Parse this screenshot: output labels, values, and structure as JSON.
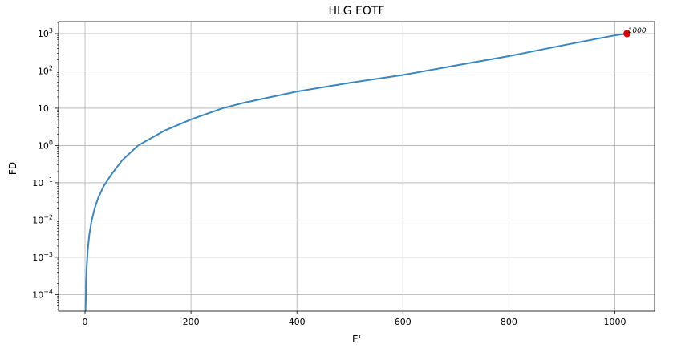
{
  "chart_data": {
    "type": "line",
    "title": "HLG EOTF",
    "xlabel": "E'",
    "ylabel": "FD",
    "xlim": [
      -50,
      1075
    ],
    "ylim": [
      3.6e-05,
      2100
    ],
    "yscale": "log",
    "grid": true,
    "xticks": [
      {
        "value": 0,
        "label": "0"
      },
      {
        "value": 200,
        "label": "200"
      },
      {
        "value": 400,
        "label": "400"
      },
      {
        "value": 600,
        "label": "600"
      },
      {
        "value": 800,
        "label": "800"
      },
      {
        "value": 1000,
        "label": "1000"
      }
    ],
    "yticks": [
      {
        "exp": -4,
        "base": "10",
        "sup": "−4"
      },
      {
        "exp": -3,
        "base": "10",
        "sup": "−3"
      },
      {
        "exp": -2,
        "base": "10",
        "sup": "−2"
      },
      {
        "exp": -1,
        "base": "10",
        "sup": "−1"
      },
      {
        "exp": 0,
        "base": "10",
        "sup": "0"
      },
      {
        "exp": 1,
        "base": "10",
        "sup": "1"
      },
      {
        "exp": 2,
        "base": "10",
        "sup": "2"
      },
      {
        "exp": 3,
        "base": "10",
        "sup": "3"
      }
    ],
    "series": [
      {
        "color": "#3a87c0",
        "x": [
          1,
          2,
          3,
          5,
          8,
          12,
          18,
          25,
          35,
          50,
          70,
          100,
          150,
          200,
          260,
          300,
          400,
          500,
          600,
          700,
          800,
          900,
          1000,
          1023
        ],
        "y": [
          4e-05,
          0.0002,
          0.0005,
          0.0015,
          0.004,
          0.009,
          0.02,
          0.04,
          0.08,
          0.17,
          0.4,
          1.0,
          2.5,
          5.0,
          10,
          14,
          28,
          48,
          78,
          140,
          250,
          480,
          900,
          1000
        ]
      }
    ],
    "marker": {
      "x": 1023,
      "y": 1000,
      "color": "#e00000",
      "label": "1000"
    }
  }
}
